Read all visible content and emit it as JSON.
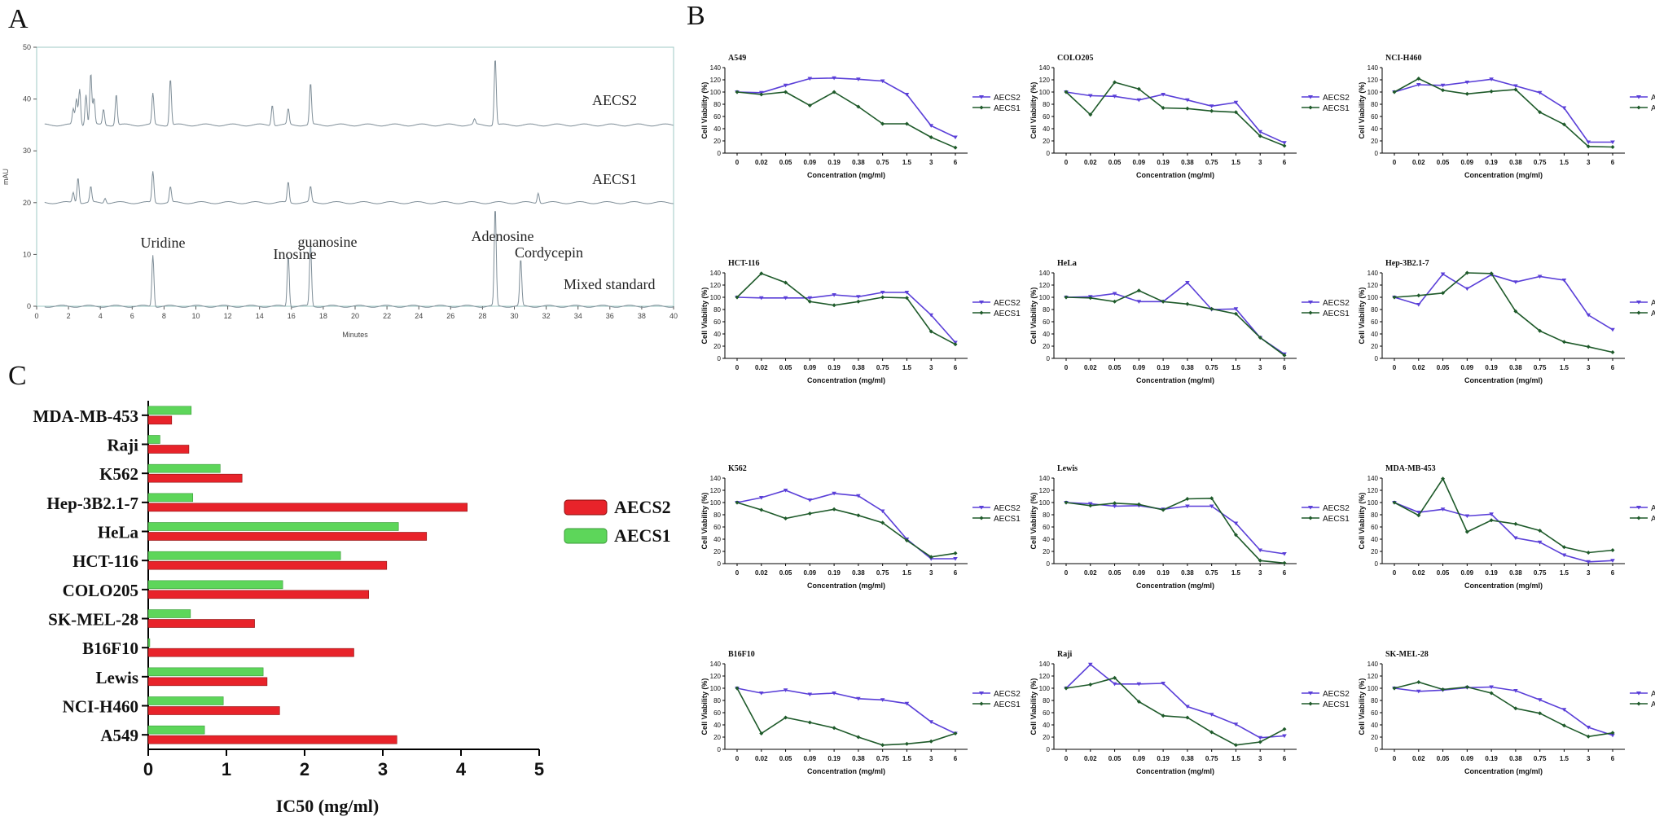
{
  "panels": {
    "a": "A",
    "b": "B",
    "c": "C"
  },
  "chart_data": [
    {
      "panel": "A",
      "type": "line",
      "ylabel": "mAU",
      "xlabel": "Minutes",
      "xlim": [
        0,
        40
      ],
      "ylim": [
        0,
        50
      ],
      "xticks": [
        0,
        2,
        4,
        6,
        8,
        10,
        12,
        14,
        16,
        18,
        20,
        22,
        24,
        26,
        28,
        30,
        32,
        34,
        36,
        38,
        40
      ],
      "yticks": [
        0,
        10,
        20,
        30,
        40,
        50
      ],
      "series": [
        {
          "name": "AECS2",
          "baseline": 35,
          "peaks": [
            [
              2.3,
              3
            ],
            [
              2.5,
              5
            ],
            [
              2.7,
              7
            ],
            [
              3.1,
              6
            ],
            [
              3.4,
              10
            ],
            [
              3.6,
              5
            ],
            [
              4.2,
              3
            ],
            [
              5.0,
              6
            ],
            [
              7.3,
              6
            ],
            [
              8.4,
              9
            ],
            [
              14.8,
              4
            ],
            [
              15.8,
              3
            ],
            [
              17.2,
              8
            ],
            [
              28.8,
              13
            ],
            [
              27.5,
              1
            ]
          ]
        },
        {
          "name": "AECS1",
          "baseline": 20,
          "peaks": [
            [
              2.3,
              2
            ],
            [
              2.6,
              5
            ],
            [
              3.4,
              3
            ],
            [
              4.3,
              1
            ],
            [
              7.3,
              6
            ],
            [
              8.4,
              3
            ],
            [
              15.8,
              4
            ],
            [
              17.2,
              3
            ],
            [
              31.5,
              2
            ]
          ]
        },
        {
          "name": "Mixed  standard",
          "baseline": 0,
          "peaks": [
            [
              7.3,
              10
            ],
            [
              15.8,
              10
            ],
            [
              17.2,
              12
            ],
            [
              28.8,
              19
            ],
            [
              30.4,
              9
            ]
          ]
        }
      ],
      "annotations": [
        "Uridine",
        "Inosine",
        "guanosine",
        "Adenosine",
        "Cordycepin"
      ]
    },
    {
      "panel": "B",
      "type": "line",
      "xlabel": "Concentration (mg/ml)",
      "ylabel": "Cell Viability (%)",
      "categories": [
        "0",
        "0.02",
        "0.05",
        "0.09",
        "0.19",
        "0.38",
        "0.75",
        "1.5",
        "3",
        "6"
      ],
      "yticks": [
        0,
        20,
        40,
        60,
        80,
        100,
        120,
        140
      ],
      "ylim": [
        0,
        140
      ],
      "series_names": [
        "AECS2",
        "AECS1"
      ],
      "series_colors": [
        "#5a3fd8",
        "#1e5a2a"
      ],
      "plots": [
        {
          "title": "A549",
          "AECS2": [
            100,
            99,
            111,
            122,
            123,
            121,
            118,
            96,
            45,
            26
          ],
          "AECS1": [
            100,
            96,
            100,
            78,
            100,
            76,
            48,
            48,
            26,
            9
          ]
        },
        {
          "title": "COLO205",
          "AECS2": [
            100,
            94,
            93,
            87,
            96,
            87,
            77,
            83,
            35,
            17
          ],
          "AECS1": [
            100,
            63,
            116,
            105,
            74,
            73,
            69,
            67,
            28,
            12
          ]
        },
        {
          "title": "NCI-H460",
          "AECS2": [
            100,
            112,
            111,
            116,
            121,
            110,
            99,
            74,
            18,
            18
          ],
          "AECS1": [
            100,
            122,
            103,
            97,
            101,
            104,
            67,
            47,
            11,
            10
          ]
        },
        {
          "title": "HCT-116",
          "AECS2": [
            100,
            99,
            99,
            99,
            104,
            101,
            108,
            108,
            71,
            26
          ],
          "AECS1": [
            100,
            139,
            124,
            93,
            87,
            93,
            100,
            99,
            44,
            23
          ]
        },
        {
          "title": "HeLa",
          "AECS2": [
            100,
            101,
            106,
            93,
            93,
            124,
            80,
            81,
            34,
            7
          ],
          "AECS1": [
            100,
            99,
            93,
            111,
            93,
            89,
            81,
            73,
            34,
            5
          ]
        },
        {
          "title": "Hep-3B2.1-7",
          "AECS2": [
            100,
            88,
            138,
            114,
            137,
            125,
            134,
            128,
            71,
            47
          ],
          "AECS1": [
            100,
            103,
            107,
            140,
            139,
            77,
            45,
            27,
            19,
            10
          ]
        },
        {
          "title": "K562",
          "AECS2": [
            100,
            108,
            120,
            104,
            115,
            111,
            86,
            40,
            8,
            8
          ],
          "AECS1": [
            100,
            88,
            74,
            82,
            89,
            79,
            67,
            38,
            11,
            17
          ]
        },
        {
          "title": "Lewis",
          "AECS2": [
            100,
            98,
            94,
            95,
            89,
            94,
            94,
            66,
            22,
            16
          ],
          "AECS1": [
            100,
            95,
            99,
            97,
            88,
            106,
            107,
            47,
            5,
            1
          ]
        },
        {
          "title": "MDA-MB-453",
          "AECS2": [
            100,
            84,
            89,
            78,
            81,
            42,
            35,
            14,
            3,
            5
          ],
          "AECS1": [
            100,
            79,
            139,
            52,
            71,
            65,
            54,
            27,
            18,
            22
          ]
        },
        {
          "title": "B16F10",
          "AECS2": [
            100,
            92,
            97,
            90,
            92,
            83,
            81,
            75,
            45,
            26
          ],
          "AECS1": [
            100,
            26,
            52,
            44,
            35,
            20,
            7,
            9,
            13,
            26
          ]
        },
        {
          "title": "Raji",
          "AECS2": [
            100,
            139,
            107,
            107,
            108,
            70,
            57,
            41,
            19,
            22
          ],
          "AECS1": [
            100,
            106,
            117,
            78,
            55,
            52,
            28,
            7,
            12,
            33
          ]
        },
        {
          "title": "SK-MEL-28",
          "AECS2": [
            100,
            95,
            97,
            101,
            102,
            96,
            81,
            65,
            36,
            23
          ],
          "AECS1": [
            100,
            110,
            98,
            102,
            92,
            67,
            59,
            39,
            21,
            27
          ]
        }
      ]
    },
    {
      "panel": "C",
      "type": "bar",
      "orientation": "horizontal",
      "xlabel": "IC50 (mg/ml)",
      "xlim": [
        0,
        5
      ],
      "xticks": [
        0,
        1,
        2,
        3,
        4,
        5
      ],
      "categories": [
        "MDA-MB-453",
        "Raji",
        "K562",
        "Hep-3B2.1-7",
        "HeLa",
        "HCT-116",
        "COLO205",
        "SK-MEL-28",
        "B16F10",
        "Lewis",
        "NCI-H460",
        "A549"
      ],
      "series": [
        {
          "name": "AECS2",
          "color": "#e8232a",
          "values": [
            0.3,
            0.52,
            1.2,
            4.08,
            3.56,
            3.05,
            2.82,
            1.36,
            2.63,
            1.52,
            1.68,
            3.18
          ]
        },
        {
          "name": "AECS1",
          "color": "#5dd65a",
          "values": [
            0.55,
            0.15,
            0.92,
            0.57,
            3.2,
            2.46,
            1.72,
            0.54,
            0.02,
            1.47,
            0.96,
            0.72
          ]
        }
      ],
      "legend_position": "right"
    }
  ]
}
